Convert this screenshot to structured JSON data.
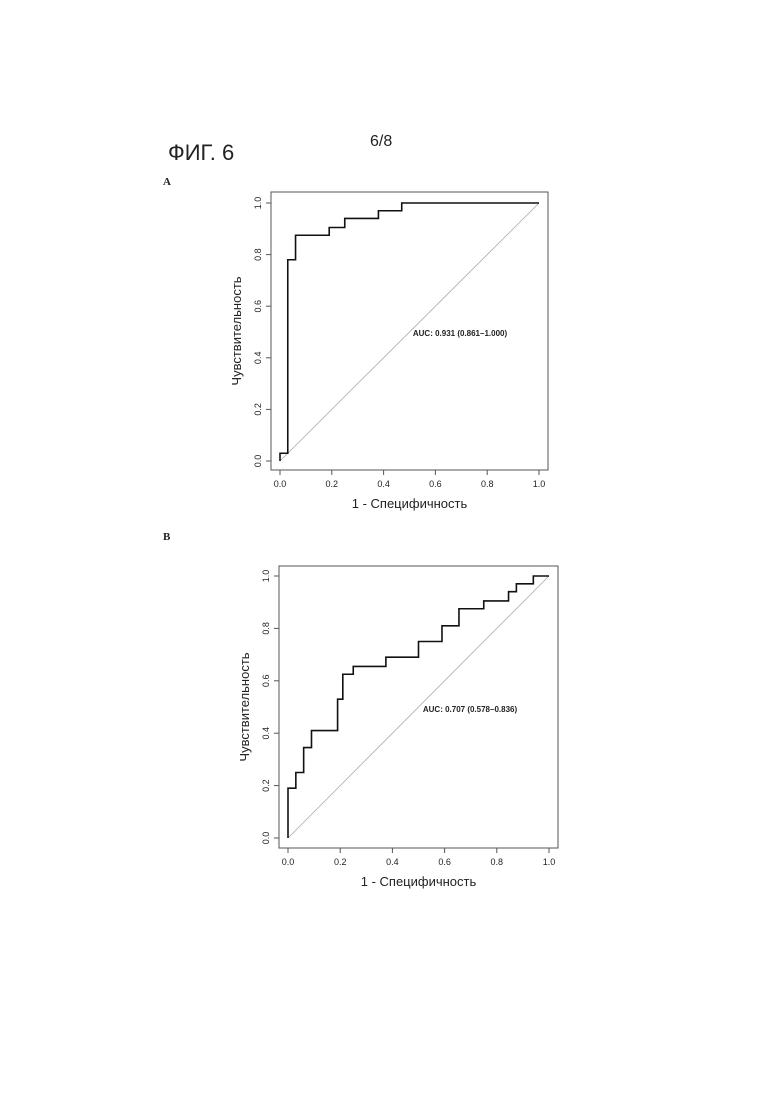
{
  "figure_label": "ФИГ. 6",
  "page_number": "6/8",
  "chart_data": [
    {
      "type": "line",
      "step": true,
      "panel_label": "A",
      "xlabel": "1 - Специфичность",
      "ylabel": "Чувствительность",
      "annotation": "AUC: 0.931 (0.861–1.000)",
      "xlim": [
        0,
        1
      ],
      "ylim": [
        0,
        1
      ],
      "xticks": [
        {
          "value": 0,
          "label": "0.0"
        },
        0.2,
        0.4,
        0.6,
        0.8,
        {
          "value": 1,
          "label": "1.0"
        }
      ],
      "yticks": [
        {
          "value": 0,
          "label": "0.0"
        },
        0.2,
        0.4,
        0.6,
        0.8,
        {
          "value": 1,
          "label": "1.0"
        }
      ],
      "diagonal": true,
      "grid": false,
      "series": [
        {
          "color": "#111111",
          "x": [
            0,
            0,
            0.03,
            0.03,
            0.06,
            0.06,
            0.19,
            0.19,
            0.25,
            0.25,
            0.38,
            0.38,
            0.47,
            0.47,
            1.0
          ],
          "values": [
            0,
            0.03,
            0.03,
            0.78,
            0.78,
            0.875,
            0.875,
            0.905,
            0.905,
            0.94,
            0.94,
            0.97,
            0.97,
            1.0,
            1.0
          ]
        }
      ]
    },
    {
      "type": "line",
      "step": true,
      "panel_label": "B",
      "xlabel": "1 - Специфичность",
      "ylabel": "Чувствительность",
      "annotation": "AUC: 0.707 (0.578–0.836)",
      "xlim": [
        0,
        1
      ],
      "ylim": [
        0,
        1
      ],
      "xticks": [
        {
          "value": 0,
          "label": "0.0"
        },
        0.2,
        0.4,
        0.6,
        0.8,
        {
          "value": 1,
          "label": "1.0"
        }
      ],
      "yticks": [
        {
          "value": 0,
          "label": "0.0"
        },
        0.2,
        0.4,
        0.6,
        0.8,
        {
          "value": 1,
          "label": "1.0"
        }
      ],
      "diagonal": true,
      "grid": false,
      "series": [
        {
          "color": "#111111",
          "x": [
            0,
            0,
            0.03,
            0.03,
            0.06,
            0.06,
            0.09,
            0.09,
            0.19,
            0.19,
            0.21,
            0.21,
            0.25,
            0.25,
            0.375,
            0.375,
            0.5,
            0.5,
            0.59,
            0.59,
            0.655,
            0.655,
            0.75,
            0.75,
            0.845,
            0.845,
            0.875,
            0.875,
            0.94,
            0.94,
            1.0
          ],
          "values": [
            0,
            0.19,
            0.19,
            0.25,
            0.25,
            0.345,
            0.345,
            0.41,
            0.41,
            0.53,
            0.53,
            0.625,
            0.625,
            0.655,
            0.655,
            0.69,
            0.69,
            0.75,
            0.75,
            0.81,
            0.81,
            0.875,
            0.875,
            0.905,
            0.905,
            0.94,
            0.94,
            0.97,
            0.97,
            1.0,
            1.0
          ]
        }
      ]
    }
  ]
}
